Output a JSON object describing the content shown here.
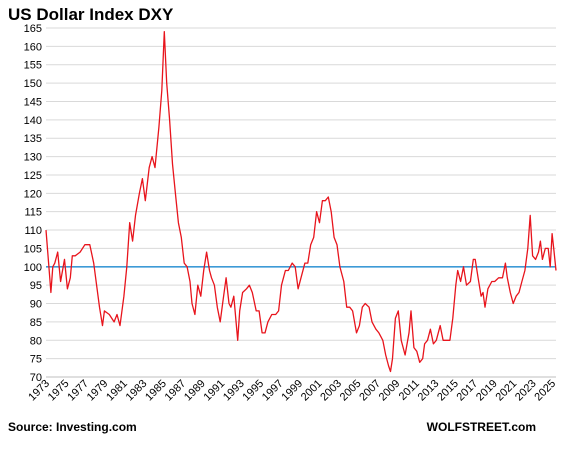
{
  "chart_data": {
    "type": "line",
    "title": "US Dollar Index DXY",
    "xlabel": "",
    "ylabel": "",
    "ylim": [
      70,
      165
    ],
    "xlim": [
      1973,
      2025.4
    ],
    "grid": "horizontal",
    "y_ticks": [
      70,
      75,
      80,
      85,
      90,
      95,
      100,
      105,
      110,
      115,
      120,
      125,
      130,
      135,
      140,
      145,
      150,
      155,
      160,
      165
    ],
    "x_ticks": [
      "1973",
      "1975",
      "1977",
      "1979",
      "1981",
      "1983",
      "1985",
      "1987",
      "1989",
      "1991",
      "1993",
      "1995",
      "1997",
      "1999",
      "2001",
      "2003",
      "2005",
      "2007",
      "2009",
      "2011",
      "2013",
      "2015",
      "2017",
      "2019",
      "2021",
      "2023",
      "2025"
    ],
    "reference_line": {
      "y": 100,
      "color": "#3d9ad6"
    },
    "series": [
      {
        "color": "#e8141c",
        "points": [
          [
            1973.0,
            110
          ],
          [
            1973.3,
            100
          ],
          [
            1973.5,
            93
          ],
          [
            1973.7,
            100
          ],
          [
            1973.9,
            101
          ],
          [
            1974.2,
            104
          ],
          [
            1974.5,
            96
          ],
          [
            1974.9,
            102
          ],
          [
            1975.2,
            94
          ],
          [
            1975.5,
            97
          ],
          [
            1975.7,
            103
          ],
          [
            1976.0,
            103
          ],
          [
            1976.5,
            104
          ],
          [
            1977.0,
            106
          ],
          [
            1977.5,
            106
          ],
          [
            1977.9,
            101
          ],
          [
            1978.2,
            95
          ],
          [
            1978.5,
            89
          ],
          [
            1978.8,
            84
          ],
          [
            1979.0,
            88
          ],
          [
            1979.5,
            87
          ],
          [
            1980.0,
            85
          ],
          [
            1980.3,
            87
          ],
          [
            1980.6,
            84
          ],
          [
            1981.0,
            92
          ],
          [
            1981.3,
            100
          ],
          [
            1981.6,
            112
          ],
          [
            1981.9,
            107
          ],
          [
            1982.2,
            114
          ],
          [
            1982.6,
            120
          ],
          [
            1982.9,
            124
          ],
          [
            1983.2,
            118
          ],
          [
            1983.6,
            127
          ],
          [
            1983.9,
            130
          ],
          [
            1984.2,
            127
          ],
          [
            1984.6,
            138
          ],
          [
            1984.9,
            148
          ],
          [
            1985.15,
            164
          ],
          [
            1985.4,
            150
          ],
          [
            1985.7,
            140
          ],
          [
            1986.0,
            128
          ],
          [
            1986.3,
            120
          ],
          [
            1986.6,
            112
          ],
          [
            1986.9,
            108
          ],
          [
            1987.2,
            101
          ],
          [
            1987.5,
            100
          ],
          [
            1987.8,
            96
          ],
          [
            1988.0,
            90
          ],
          [
            1988.3,
            87
          ],
          [
            1988.6,
            95
          ],
          [
            1988.9,
            92
          ],
          [
            1989.2,
            99
          ],
          [
            1989.5,
            104
          ],
          [
            1989.8,
            99
          ],
          [
            1990.0,
            97
          ],
          [
            1990.3,
            95
          ],
          [
            1990.6,
            89
          ],
          [
            1990.9,
            85
          ],
          [
            1991.2,
            91
          ],
          [
            1991.5,
            97
          ],
          [
            1991.8,
            90
          ],
          [
            1992.0,
            89
          ],
          [
            1992.3,
            92
          ],
          [
            1992.7,
            80
          ],
          [
            1992.9,
            88
          ],
          [
            1993.2,
            93
          ],
          [
            1993.6,
            94
          ],
          [
            1993.9,
            95
          ],
          [
            1994.2,
            93
          ],
          [
            1994.6,
            88
          ],
          [
            1994.9,
            88
          ],
          [
            1995.2,
            82
          ],
          [
            1995.5,
            82
          ],
          [
            1995.8,
            85
          ],
          [
            1996.2,
            87
          ],
          [
            1996.6,
            87
          ],
          [
            1996.9,
            88
          ],
          [
            1997.2,
            95
          ],
          [
            1997.6,
            99
          ],
          [
            1997.9,
            99
          ],
          [
            1998.3,
            101
          ],
          [
            1998.6,
            100
          ],
          [
            1998.9,
            94
          ],
          [
            1999.2,
            97
          ],
          [
            1999.6,
            101
          ],
          [
            1999.9,
            101
          ],
          [
            2000.2,
            106
          ],
          [
            2000.5,
            108
          ],
          [
            2000.8,
            115
          ],
          [
            2001.1,
            112
          ],
          [
            2001.4,
            118
          ],
          [
            2001.7,
            118
          ],
          [
            2002.0,
            119
          ],
          [
            2002.3,
            115
          ],
          [
            2002.6,
            108
          ],
          [
            2002.9,
            106
          ],
          [
            2003.2,
            100
          ],
          [
            2003.6,
            96
          ],
          [
            2003.9,
            89
          ],
          [
            2004.2,
            89
          ],
          [
            2004.5,
            88
          ],
          [
            2004.9,
            82
          ],
          [
            2005.2,
            84
          ],
          [
            2005.5,
            89
          ],
          [
            2005.8,
            90
          ],
          [
            2006.2,
            89
          ],
          [
            2006.5,
            85
          ],
          [
            2006.9,
            83
          ],
          [
            2007.2,
            82
          ],
          [
            2007.6,
            80
          ],
          [
            2007.9,
            76
          ],
          [
            2008.2,
            73
          ],
          [
            2008.4,
            71.5
          ],
          [
            2008.6,
            75
          ],
          [
            2008.9,
            86
          ],
          [
            2009.2,
            88
          ],
          [
            2009.5,
            80
          ],
          [
            2009.9,
            76
          ],
          [
            2010.3,
            82
          ],
          [
            2010.5,
            88
          ],
          [
            2010.8,
            78
          ],
          [
            2011.1,
            77
          ],
          [
            2011.4,
            74
          ],
          [
            2011.7,
            75
          ],
          [
            2011.9,
            79
          ],
          [
            2012.2,
            80
          ],
          [
            2012.5,
            83
          ],
          [
            2012.8,
            79
          ],
          [
            2013.1,
            80
          ],
          [
            2013.5,
            84
          ],
          [
            2013.8,
            80
          ],
          [
            2014.2,
            80
          ],
          [
            2014.5,
            80
          ],
          [
            2014.8,
            86
          ],
          [
            2015.1,
            95
          ],
          [
            2015.3,
            99
          ],
          [
            2015.6,
            96
          ],
          [
            2015.9,
            100
          ],
          [
            2016.2,
            95
          ],
          [
            2016.6,
            96
          ],
          [
            2016.9,
            102
          ],
          [
            2017.1,
            102
          ],
          [
            2017.4,
            97
          ],
          [
            2017.7,
            92
          ],
          [
            2017.9,
            93
          ],
          [
            2018.1,
            89
          ],
          [
            2018.4,
            94
          ],
          [
            2018.8,
            96
          ],
          [
            2019.1,
            96
          ],
          [
            2019.5,
            97
          ],
          [
            2019.9,
            97
          ],
          [
            2020.2,
            101
          ],
          [
            2020.4,
            97
          ],
          [
            2020.7,
            93
          ],
          [
            2021.0,
            90
          ],
          [
            2021.3,
            92
          ],
          [
            2021.6,
            93
          ],
          [
            2021.9,
            96
          ],
          [
            2022.2,
            99
          ],
          [
            2022.5,
            105
          ],
          [
            2022.75,
            114
          ],
          [
            2023.0,
            103
          ],
          [
            2023.3,
            102
          ],
          [
            2023.6,
            104
          ],
          [
            2023.8,
            107
          ],
          [
            2024.0,
            102
          ],
          [
            2024.3,
            105
          ],
          [
            2024.6,
            105
          ],
          [
            2024.8,
            100
          ],
          [
            2025.0,
            109
          ],
          [
            2025.2,
            104
          ],
          [
            2025.4,
            99
          ]
        ]
      }
    ],
    "source": "Source: Investing.com",
    "brand": "WOLFSTREET.com"
  }
}
